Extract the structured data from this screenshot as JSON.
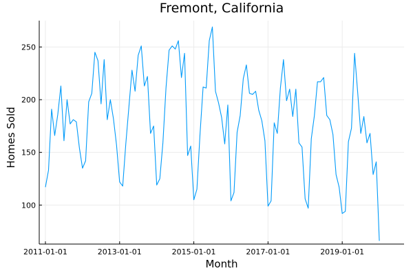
{
  "chart_data": {
    "type": "line",
    "title": "Fremont, California",
    "xlabel": "Month",
    "ylabel": "Homes Sold",
    "x_tick_labels": [
      "2011-01-01",
      "2013-01-01",
      "2015-01-01",
      "2017-01-01",
      "2019-01-01"
    ],
    "y_ticks": [
      100,
      150,
      200,
      250
    ],
    "xlim": [
      "2010-11-01",
      "2020-09-01"
    ],
    "ylim": [
      63,
      275
    ],
    "grid": true,
    "legend": "none",
    "series_color": "#009af9",
    "series": [
      {
        "start": "2011-01-01",
        "frequency": "monthly",
        "values": [
          117,
          133,
          191,
          166,
          186,
          213,
          161,
          200,
          177,
          181,
          179,
          154,
          135,
          142,
          198,
          206,
          245,
          237,
          196,
          238,
          181,
          200,
          182,
          157,
          122,
          118,
          158,
          193,
          228,
          208,
          242,
          251,
          213,
          222,
          168,
          175,
          119,
          125,
          159,
          211,
          247,
          251,
          248,
          256,
          221,
          244,
          147,
          156,
          105,
          115,
          167,
          212,
          211,
          256,
          269,
          208,
          197,
          183,
          158,
          195,
          104,
          112,
          169,
          185,
          220,
          233,
          206,
          205,
          208,
          190,
          180,
          161,
          99,
          104,
          178,
          168,
          211,
          238,
          199,
          210,
          184,
          210,
          159,
          155,
          106,
          97,
          163,
          185,
          217,
          217,
          221,
          185,
          181,
          167,
          129,
          117,
          92,
          94,
          160,
          173,
          244,
          207,
          168,
          184,
          159,
          168,
          129,
          141,
          66
        ]
      }
    ]
  }
}
